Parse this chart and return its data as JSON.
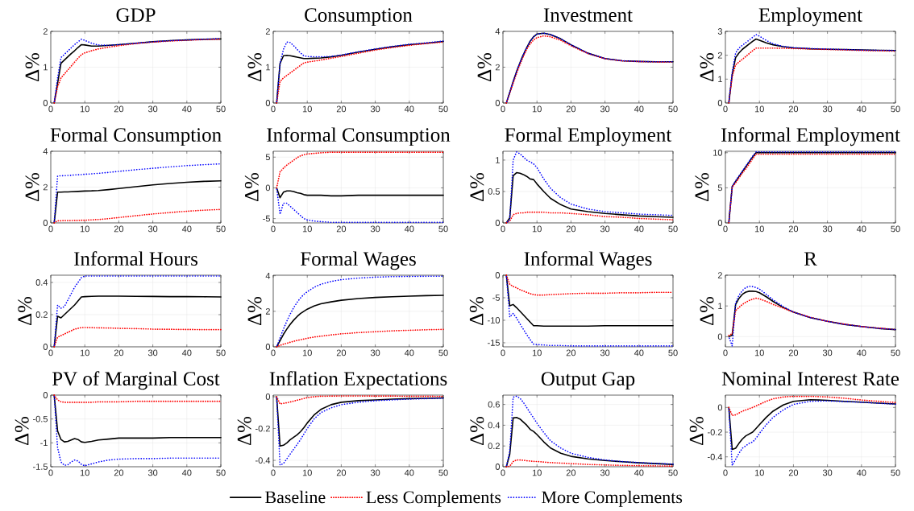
{
  "chart_data": [
    {
      "type": "line",
      "title": "GDP",
      "ylabel": "Δ%",
      "x": [
        1,
        2,
        3,
        4,
        5,
        6,
        7,
        8,
        9,
        10,
        12,
        14,
        17,
        20,
        25,
        30,
        35,
        40,
        45,
        50
      ],
      "xlim": [
        0,
        50
      ],
      "xticks": [
        0,
        10,
        20,
        30,
        40,
        50
      ],
      "ylim": [
        0,
        2
      ],
      "yticks": [
        0,
        1,
        2
      ],
      "grid": true,
      "series": [
        {
          "color": "#000000",
          "line_style": "solid",
          "values": [
            0,
            0.55,
            1.11,
            1.2,
            1.29,
            1.38,
            1.46,
            1.55,
            1.63,
            1.62,
            1.59,
            1.59,
            1.61,
            1.63,
            1.67,
            1.71,
            1.74,
            1.76,
            1.78,
            1.79
          ]
        },
        {
          "color": "#ff0000",
          "line_style": "dotted",
          "values": [
            0,
            0.45,
            0.7,
            0.81,
            0.92,
            1.03,
            1.14,
            1.25,
            1.35,
            1.4,
            1.46,
            1.51,
            1.56,
            1.6,
            1.66,
            1.7,
            1.73,
            1.75,
            1.77,
            1.78
          ]
        },
        {
          "color": "#0000ff",
          "line_style": "dotted",
          "values": [
            0,
            0.7,
            1.27,
            1.36,
            1.45,
            1.54,
            1.63,
            1.71,
            1.78,
            1.75,
            1.67,
            1.62,
            1.61,
            1.63,
            1.67,
            1.71,
            1.74,
            1.76,
            1.78,
            1.8
          ]
        }
      ]
    },
    {
      "type": "line",
      "title": "Consumption",
      "ylabel": "Δ%",
      "x": [
        1,
        2,
        3,
        4,
        5,
        6,
        7,
        8,
        9,
        10,
        12,
        14,
        17,
        20,
        25,
        30,
        35,
        40,
        45,
        50
      ],
      "xlim": [
        0,
        50
      ],
      "xticks": [
        0,
        10,
        20,
        30,
        40,
        50
      ],
      "ylim": [
        0,
        2
      ],
      "yticks": [
        0,
        1,
        2
      ],
      "grid": true,
      "series": [
        {
          "color": "#000000",
          "line_style": "solid",
          "values": [
            0,
            1.1,
            1.32,
            1.33,
            1.32,
            1.3,
            1.28,
            1.26,
            1.24,
            1.24,
            1.25,
            1.26,
            1.29,
            1.33,
            1.42,
            1.5,
            1.57,
            1.63,
            1.67,
            1.72
          ]
        },
        {
          "color": "#ff0000",
          "line_style": "dotted",
          "values": [
            0,
            0.6,
            0.7,
            0.77,
            0.84,
            0.91,
            0.98,
            1.05,
            1.12,
            1.14,
            1.17,
            1.2,
            1.25,
            1.3,
            1.39,
            1.48,
            1.55,
            1.61,
            1.66,
            1.7
          ]
        },
        {
          "color": "#0000ff",
          "line_style": "dotted",
          "values": [
            0,
            1.1,
            1.5,
            1.7,
            1.69,
            1.6,
            1.5,
            1.4,
            1.32,
            1.3,
            1.29,
            1.29,
            1.3,
            1.34,
            1.43,
            1.51,
            1.58,
            1.64,
            1.68,
            1.73
          ]
        }
      ]
    },
    {
      "type": "line",
      "title": "Investment",
      "ylabel": "Δ%",
      "x": [
        1,
        2,
        3,
        4,
        5,
        6,
        7,
        8,
        9,
        10,
        12,
        14,
        17,
        20,
        25,
        30,
        35,
        40,
        45,
        50
      ],
      "xlim": [
        0,
        50
      ],
      "xticks": [
        0,
        10,
        20,
        30,
        40,
        50
      ],
      "ylim": [
        0,
        4
      ],
      "yticks": [
        0,
        2,
        4
      ],
      "grid": true,
      "series": [
        {
          "color": "#000000",
          "line_style": "solid",
          "values": [
            0,
            0.6,
            1.2,
            1.75,
            2.25,
            2.7,
            3.1,
            3.45,
            3.7,
            3.85,
            3.9,
            3.82,
            3.58,
            3.25,
            2.78,
            2.48,
            2.36,
            2.32,
            2.3,
            2.3
          ]
        },
        {
          "color": "#ff0000",
          "line_style": "dotted",
          "values": [
            0,
            0.55,
            1.1,
            1.65,
            2.15,
            2.6,
            3.0,
            3.3,
            3.52,
            3.65,
            3.75,
            3.7,
            3.5,
            3.2,
            2.76,
            2.47,
            2.35,
            2.31,
            2.29,
            2.29
          ]
        },
        {
          "color": "#0000ff",
          "line_style": "dotted",
          "values": [
            0,
            0.6,
            1.2,
            1.75,
            2.25,
            2.7,
            3.1,
            3.45,
            3.7,
            3.85,
            3.9,
            3.83,
            3.59,
            3.25,
            2.78,
            2.48,
            2.36,
            2.32,
            2.3,
            2.3
          ]
        }
      ]
    },
    {
      "type": "line",
      "title": "Employment",
      "ylabel": "Δ%",
      "x": [
        1,
        2,
        3,
        4,
        5,
        6,
        7,
        8,
        9,
        10,
        12,
        14,
        17,
        20,
        25,
        30,
        35,
        40,
        45,
        50
      ],
      "xlim": [
        0,
        50
      ],
      "xticks": [
        0,
        10,
        20,
        30,
        40,
        50
      ],
      "ylim": [
        0,
        3
      ],
      "yticks": [
        0,
        1,
        2,
        3
      ],
      "grid": true,
      "series": [
        {
          "color": "#000000",
          "line_style": "solid",
          "values": [
            0,
            1.2,
            1.9,
            2.1,
            2.25,
            2.36,
            2.47,
            2.58,
            2.68,
            2.63,
            2.52,
            2.44,
            2.36,
            2.31,
            2.27,
            2.25,
            2.24,
            2.22,
            2.21,
            2.2
          ]
        },
        {
          "color": "#ff0000",
          "line_style": "dotted",
          "values": [
            0,
            1.1,
            1.6,
            1.72,
            1.83,
            1.95,
            2.07,
            2.19,
            2.3,
            2.3,
            2.3,
            2.3,
            2.29,
            2.28,
            2.26,
            2.24,
            2.22,
            2.2,
            2.19,
            2.17
          ]
        },
        {
          "color": "#0000ff",
          "line_style": "dotted",
          "values": [
            0,
            1.3,
            2.1,
            2.3,
            2.42,
            2.53,
            2.64,
            2.75,
            2.87,
            2.8,
            2.62,
            2.48,
            2.37,
            2.32,
            2.28,
            2.26,
            2.24,
            2.22,
            2.21,
            2.2
          ]
        }
      ]
    },
    {
      "type": "line",
      "title": "Formal Consumption",
      "ylabel": "Δ%",
      "x": [
        1,
        2,
        3,
        4,
        5,
        6,
        7,
        8,
        9,
        10,
        12,
        14,
        17,
        20,
        25,
        30,
        35,
        40,
        45,
        50
      ],
      "xlim": [
        0,
        50
      ],
      "xticks": [
        0,
        10,
        20,
        30,
        40,
        50
      ],
      "ylim": [
        0,
        4
      ],
      "yticks": [
        0,
        2,
        4
      ],
      "grid": true,
      "series": [
        {
          "color": "#000000",
          "line_style": "solid",
          "values": [
            0,
            1.72,
            1.72,
            1.73,
            1.73,
            1.74,
            1.75,
            1.76,
            1.77,
            1.78,
            1.79,
            1.81,
            1.86,
            1.92,
            2.02,
            2.12,
            2.2,
            2.27,
            2.32,
            2.35
          ]
        },
        {
          "color": "#ff0000",
          "line_style": "dotted",
          "values": [
            0,
            0.12,
            0.12,
            0.13,
            0.13,
            0.13,
            0.14,
            0.14,
            0.15,
            0.15,
            0.17,
            0.19,
            0.24,
            0.3,
            0.4,
            0.5,
            0.58,
            0.65,
            0.71,
            0.75
          ]
        },
        {
          "color": "#0000ff",
          "line_style": "dotted",
          "values": [
            0,
            2.62,
            2.63,
            2.64,
            2.65,
            2.66,
            2.68,
            2.69,
            2.7,
            2.72,
            2.74,
            2.77,
            2.82,
            2.88,
            2.97,
            3.05,
            3.13,
            3.2,
            3.25,
            3.3
          ]
        }
      ]
    },
    {
      "type": "line",
      "title": "Informal Consumption",
      "ylabel": "Δ%",
      "x": [
        1,
        2,
        3,
        4,
        5,
        6,
        7,
        8,
        9,
        10,
        12,
        14,
        17,
        20,
        25,
        30,
        35,
        40,
        45,
        50
      ],
      "xlim": [
        0,
        50
      ],
      "xticks": [
        0,
        10,
        20,
        30,
        40,
        50
      ],
      "ylim": [
        -5.7,
        5.95
      ],
      "yticks": [
        -5,
        0,
        5
      ],
      "grid": true,
      "series": [
        {
          "color": "#000000",
          "line_style": "solid",
          "values": [
            0,
            -1.6,
            -0.7,
            -0.5,
            -0.5,
            -0.6,
            -0.8,
            -0.9,
            -1.1,
            -1.2,
            -1.2,
            -1.2,
            -1.3,
            -1.3,
            -1.2,
            -1.2,
            -1.2,
            -1.2,
            -1.2,
            -1.2
          ]
        },
        {
          "color": "#ff0000",
          "line_style": "dotted",
          "values": [
            0,
            2.6,
            3.2,
            3.7,
            4.1,
            4.5,
            4.9,
            5.2,
            5.4,
            5.5,
            5.6,
            5.7,
            5.8,
            5.8,
            5.8,
            5.8,
            5.8,
            5.8,
            5.8,
            5.8
          ]
        },
        {
          "color": "#0000ff",
          "line_style": "dotted",
          "values": [
            0,
            -4.3,
            -2.5,
            -2.5,
            -3.0,
            -3.5,
            -4.0,
            -4.5,
            -5.0,
            -5.2,
            -5.4,
            -5.5,
            -5.6,
            -5.6,
            -5.6,
            -5.6,
            -5.6,
            -5.6,
            -5.6,
            -5.6
          ]
        }
      ]
    },
    {
      "type": "line",
      "title": "Formal Employment",
      "ylabel": "Δ%",
      "x": [
        1,
        2,
        3,
        4,
        5,
        6,
        7,
        8,
        9,
        10,
        12,
        14,
        17,
        20,
        25,
        30,
        35,
        40,
        45,
        50
      ],
      "xlim": [
        0,
        50
      ],
      "xticks": [
        0,
        10,
        20,
        30,
        40,
        50
      ],
      "ylim": [
        0,
        1.14
      ],
      "yticks": [
        0,
        0.5,
        1
      ],
      "grid": true,
      "series": [
        {
          "color": "#000000",
          "line_style": "solid",
          "values": [
            0,
            0.08,
            0.75,
            0.8,
            0.79,
            0.77,
            0.74,
            0.7,
            0.69,
            0.62,
            0.5,
            0.39,
            0.29,
            0.22,
            0.18,
            0.15,
            0.13,
            0.11,
            0.1,
            0.09
          ]
        },
        {
          "color": "#ff0000",
          "line_style": "dotted",
          "values": [
            0,
            0.03,
            0.13,
            0.15,
            0.16,
            0.16,
            0.17,
            0.17,
            0.17,
            0.17,
            0.17,
            0.16,
            0.16,
            0.15,
            0.13,
            0.1,
            0.09,
            0.07,
            0.06,
            0.05
          ]
        },
        {
          "color": "#0000ff",
          "line_style": "dotted",
          "values": [
            0,
            0.05,
            1.0,
            1.13,
            1.1,
            1.05,
            1.0,
            0.97,
            0.94,
            0.88,
            0.7,
            0.55,
            0.4,
            0.3,
            0.22,
            0.18,
            0.16,
            0.14,
            0.13,
            0.12
          ]
        }
      ]
    },
    {
      "type": "line",
      "title": "Informal Employment",
      "ylabel": "Δ%",
      "x": [
        1,
        2,
        3,
        4,
        5,
        6,
        7,
        8,
        9,
        10,
        12,
        14,
        17,
        20,
        25,
        30,
        35,
        40,
        45,
        50
      ],
      "xlim": [
        0,
        50
      ],
      "xticks": [
        0,
        10,
        20,
        30,
        40,
        50
      ],
      "ylim": [
        0,
        10.2
      ],
      "yticks": [
        0,
        5,
        10
      ],
      "grid": true,
      "series": [
        {
          "color": "#000000",
          "line_style": "solid",
          "values": [
            0,
            5.2,
            5.9,
            6.6,
            7.3,
            8.0,
            8.7,
            9.4,
            10.0,
            10.0,
            10.0,
            10.0,
            10.0,
            10.0,
            10.0,
            10.0,
            10.0,
            10.0,
            10.0,
            10.0
          ]
        },
        {
          "color": "#ff0000",
          "line_style": "dotted",
          "values": [
            0,
            5.1,
            5.7,
            6.4,
            7.1,
            7.7,
            8.4,
            9.1,
            9.8,
            9.8,
            9.8,
            9.8,
            9.8,
            9.8,
            9.8,
            9.8,
            9.8,
            9.8,
            9.8,
            9.8
          ]
        },
        {
          "color": "#0000ff",
          "line_style": "dotted",
          "values": [
            0,
            5.2,
            6.0,
            6.7,
            7.4,
            8.1,
            8.8,
            9.5,
            10.1,
            10.1,
            10.1,
            10.1,
            10.1,
            10.1,
            10.1,
            10.1,
            10.1,
            10.1,
            10.1,
            10.1
          ]
        }
      ]
    },
    {
      "type": "line",
      "title": "Informal Hours",
      "ylabel": "Δ%",
      "x": [
        1,
        2,
        3,
        4,
        5,
        6,
        7,
        8,
        9,
        10,
        12,
        14,
        17,
        20,
        25,
        30,
        35,
        40,
        45,
        50
      ],
      "xlim": [
        0,
        50
      ],
      "xticks": [
        0,
        10,
        20,
        30,
        40,
        50
      ],
      "ylim": [
        0,
        0.445
      ],
      "yticks": [
        0,
        0.2,
        0.4
      ],
      "grid": true,
      "series": [
        {
          "color": "#000000",
          "line_style": "solid",
          "values": [
            0,
            0.19,
            0.18,
            0.2,
            0.22,
            0.24,
            0.26,
            0.285,
            0.31,
            0.312,
            0.314,
            0.315,
            0.315,
            0.315,
            0.314,
            0.313,
            0.312,
            0.312,
            0.311,
            0.31
          ]
        },
        {
          "color": "#ff0000",
          "line_style": "dotted",
          "values": [
            0,
            0.06,
            0.07,
            0.08,
            0.09,
            0.1,
            0.11,
            0.115,
            0.12,
            0.12,
            0.119,
            0.118,
            0.117,
            0.115,
            0.113,
            0.11,
            0.109,
            0.108,
            0.107,
            0.107
          ]
        },
        {
          "color": "#0000ff",
          "line_style": "dotted",
          "values": [
            0,
            0.26,
            0.24,
            0.25,
            0.29,
            0.33,
            0.37,
            0.4,
            0.43,
            0.44,
            0.44,
            0.44,
            0.44,
            0.44,
            0.44,
            0.44,
            0.44,
            0.44,
            0.44,
            0.44
          ]
        }
      ]
    },
    {
      "type": "line",
      "title": "Formal Wages",
      "ylabel": "Δ%",
      "x": [
        1,
        2,
        3,
        4,
        5,
        6,
        7,
        8,
        9,
        10,
        12,
        14,
        17,
        20,
        25,
        30,
        35,
        40,
        45,
        50
      ],
      "xlim": [
        0,
        50
      ],
      "xticks": [
        0,
        10,
        20,
        30,
        40,
        50
      ],
      "ylim": [
        0,
        4.03
      ],
      "yticks": [
        0,
        2,
        4
      ],
      "grid": true,
      "series": [
        {
          "color": "#000000",
          "line_style": "solid",
          "values": [
            0,
            0.35,
            0.7,
            1.0,
            1.27,
            1.5,
            1.7,
            1.87,
            2.0,
            2.12,
            2.3,
            2.42,
            2.53,
            2.62,
            2.72,
            2.78,
            2.82,
            2.85,
            2.88,
            2.9
          ]
        },
        {
          "color": "#ff0000",
          "line_style": "dotted",
          "values": [
            0,
            0.08,
            0.15,
            0.2,
            0.26,
            0.31,
            0.36,
            0.4,
            0.44,
            0.48,
            0.55,
            0.6,
            0.67,
            0.73,
            0.8,
            0.85,
            0.9,
            0.93,
            0.96,
            0.98
          ]
        },
        {
          "color": "#0000ff",
          "line_style": "dotted",
          "values": [
            0,
            0.5,
            1.0,
            1.45,
            1.85,
            2.2,
            2.5,
            2.75,
            2.95,
            3.1,
            3.35,
            3.52,
            3.68,
            3.78,
            3.87,
            3.92,
            3.95,
            3.96,
            3.97,
            3.97
          ]
        }
      ]
    },
    {
      "type": "line",
      "title": "Informal Wages",
      "ylabel": "Δ%",
      "x": [
        1,
        2,
        3,
        4,
        5,
        6,
        7,
        8,
        9,
        10,
        12,
        14,
        17,
        20,
        25,
        30,
        35,
        40,
        45,
        50
      ],
      "xlim": [
        0,
        50
      ],
      "xticks": [
        0,
        10,
        20,
        30,
        40,
        50
      ],
      "ylim": [
        -15.9,
        0
      ],
      "yticks": [
        -15,
        -10,
        -5,
        0
      ],
      "grid": true,
      "series": [
        {
          "color": "#000000",
          "line_style": "solid",
          "values": [
            0,
            -6.8,
            -6.5,
            -7.2,
            -8.0,
            -8.8,
            -9.6,
            -10.4,
            -11.2,
            -11.2,
            -11.3,
            -11.3,
            -11.3,
            -11.3,
            -11.3,
            -11.2,
            -11.2,
            -11.2,
            -11.2,
            -11.2
          ]
        },
        {
          "color": "#ff0000",
          "line_style": "dotted",
          "values": [
            0,
            -2.0,
            -2.5,
            -2.8,
            -3.2,
            -3.5,
            -3.8,
            -4.1,
            -4.3,
            -4.4,
            -4.4,
            -4.3,
            -4.2,
            -4.1,
            -4.0,
            -4.0,
            -3.9,
            -3.9,
            -3.8,
            -3.8
          ]
        },
        {
          "color": "#0000ff",
          "line_style": "dotted",
          "values": [
            0,
            -9.3,
            -8.5,
            -9.5,
            -10.8,
            -12.0,
            -13.2,
            -14.3,
            -15.3,
            -15.4,
            -15.5,
            -15.6,
            -15.6,
            -15.7,
            -15.7,
            -15.7,
            -15.7,
            -15.7,
            -15.7,
            -15.7
          ]
        }
      ]
    },
    {
      "type": "line",
      "title": "R",
      "ylabel": "Δ%",
      "x": [
        1,
        2,
        3,
        4,
        5,
        6,
        7,
        8,
        9,
        10,
        12,
        14,
        17,
        20,
        25,
        30,
        35,
        40,
        45,
        50
      ],
      "xlim": [
        0,
        50
      ],
      "xticks": [
        0,
        10,
        20,
        30,
        40,
        50
      ],
      "ylim": [
        -0.33,
        2
      ],
      "yticks": [
        0,
        1,
        2
      ],
      "grid": true,
      "series": [
        {
          "color": "#000000",
          "line_style": "solid",
          "values": [
            0,
            0.05,
            1.05,
            1.25,
            1.38,
            1.45,
            1.48,
            1.48,
            1.47,
            1.43,
            1.3,
            1.15,
            0.95,
            0.8,
            0.62,
            0.5,
            0.4,
            0.33,
            0.27,
            0.23
          ]
        },
        {
          "color": "#ff0000",
          "line_style": "dotted",
          "values": [
            0.04,
            0.1,
            0.85,
            0.95,
            1.05,
            1.12,
            1.18,
            1.22,
            1.25,
            1.23,
            1.15,
            1.05,
            0.93,
            0.8,
            0.63,
            0.5,
            0.41,
            0.33,
            0.28,
            0.23
          ]
        },
        {
          "color": "#0000ff",
          "line_style": "dotted",
          "values": [
            0,
            -0.3,
            1.1,
            1.35,
            1.5,
            1.6,
            1.64,
            1.63,
            1.6,
            1.55,
            1.38,
            1.2,
            0.98,
            0.8,
            0.62,
            0.5,
            0.4,
            0.33,
            0.27,
            0.23
          ]
        }
      ]
    },
    {
      "type": "line",
      "title": "PV of Marginal Cost",
      "ylabel": "Δ%",
      "x": [
        1,
        2,
        3,
        4,
        5,
        6,
        7,
        8,
        9,
        10,
        12,
        14,
        17,
        20,
        25,
        30,
        35,
        40,
        45,
        50
      ],
      "xlim": [
        0,
        50
      ],
      "xticks": [
        0,
        10,
        20,
        30,
        40,
        50
      ],
      "ylim": [
        -1.5,
        0
      ],
      "yticks": [
        -1.5,
        -1,
        -0.5,
        0
      ],
      "grid": true,
      "series": [
        {
          "color": "#000000",
          "line_style": "solid",
          "values": [
            0,
            -0.75,
            -0.93,
            -0.98,
            -0.97,
            -0.94,
            -0.91,
            -0.93,
            -0.98,
            -0.99,
            -0.97,
            -0.94,
            -0.92,
            -0.9,
            -0.9,
            -0.9,
            -0.89,
            -0.89,
            -0.89,
            -0.89
          ]
        },
        {
          "color": "#ff0000",
          "line_style": "dotted",
          "values": [
            0,
            -0.1,
            -0.14,
            -0.15,
            -0.15,
            -0.15,
            -0.15,
            -0.15,
            -0.15,
            -0.15,
            -0.15,
            -0.14,
            -0.14,
            -0.14,
            -0.13,
            -0.13,
            -0.13,
            -0.13,
            -0.13,
            -0.13
          ]
        },
        {
          "color": "#0000ff",
          "line_style": "dotted",
          "values": [
            0,
            -1.1,
            -1.4,
            -1.47,
            -1.46,
            -1.4,
            -1.36,
            -1.38,
            -1.45,
            -1.48,
            -1.44,
            -1.4,
            -1.36,
            -1.34,
            -1.33,
            -1.33,
            -1.32,
            -1.32,
            -1.32,
            -1.32
          ]
        }
      ]
    },
    {
      "type": "line",
      "title": "Inflation Expectations",
      "ylabel": "Δ%",
      "x": [
        1,
        2,
        3,
        4,
        5,
        6,
        7,
        8,
        9,
        10,
        12,
        14,
        17,
        20,
        25,
        30,
        35,
        40,
        45,
        50
      ],
      "xlim": [
        0,
        50
      ],
      "xticks": [
        0,
        10,
        20,
        30,
        40,
        50
      ],
      "ylim": [
        -0.44,
        0.01
      ],
      "yticks": [
        -0.4,
        -0.2,
        0
      ],
      "grid": true,
      "legend": "bottom",
      "series": [
        {
          "name": "Baseline",
          "color": "#000000",
          "line_style": "solid",
          "values": [
            0,
            -0.31,
            -0.305,
            -0.29,
            -0.27,
            -0.255,
            -0.24,
            -0.22,
            -0.195,
            -0.165,
            -0.115,
            -0.08,
            -0.05,
            -0.035,
            -0.025,
            -0.02,
            -0.015,
            -0.012,
            -0.01,
            -0.008
          ]
        },
        {
          "name": "Less Complements",
          "color": "#ff0000",
          "line_style": "dotted",
          "values": [
            0,
            -0.045,
            -0.042,
            -0.038,
            -0.033,
            -0.028,
            -0.022,
            -0.017,
            -0.011,
            -0.006,
            0,
            0.003,
            0.004,
            0.005,
            0.005,
            0.004,
            0.004,
            0.003,
            0.003,
            0.002
          ]
        },
        {
          "name": "More Complements",
          "color": "#0000ff",
          "line_style": "dotted",
          "values": [
            0,
            -0.43,
            -0.42,
            -0.39,
            -0.36,
            -0.33,
            -0.3,
            -0.27,
            -0.235,
            -0.2,
            -0.14,
            -0.1,
            -0.07,
            -0.05,
            -0.035,
            -0.025,
            -0.02,
            -0.015,
            -0.012,
            -0.01
          ]
        }
      ]
    },
    {
      "type": "line",
      "title": "Output Gap",
      "ylabel": "Δ%",
      "x": [
        1,
        2,
        3,
        4,
        5,
        6,
        7,
        8,
        9,
        10,
        12,
        14,
        17,
        20,
        25,
        30,
        35,
        40,
        45,
        50
      ],
      "xlim": [
        0,
        50
      ],
      "xticks": [
        0,
        10,
        20,
        30,
        40,
        50
      ],
      "ylim": [
        0,
        0.69
      ],
      "yticks": [
        0,
        0.2,
        0.4,
        0.6
      ],
      "grid": true,
      "series": [
        {
          "color": "#000000",
          "line_style": "solid",
          "values": [
            0,
            0.12,
            0.47,
            0.475,
            0.46,
            0.43,
            0.4,
            0.36,
            0.34,
            0.31,
            0.24,
            0.18,
            0.13,
            0.1,
            0.075,
            0.06,
            0.048,
            0.038,
            0.03,
            0.022
          ]
        },
        {
          "color": "#ff0000",
          "line_style": "dotted",
          "values": [
            0,
            0.005,
            0.05,
            0.065,
            0.065,
            0.062,
            0.058,
            0.055,
            0.052,
            0.05,
            0.045,
            0.04,
            0.035,
            0.03,
            0.022,
            0.017,
            0.013,
            0.01,
            0.008,
            0.006
          ]
        },
        {
          "color": "#0000ff",
          "line_style": "dotted",
          "values": [
            0,
            0.15,
            0.67,
            0.68,
            0.66,
            0.62,
            0.57,
            0.52,
            0.47,
            0.42,
            0.33,
            0.25,
            0.18,
            0.13,
            0.09,
            0.065,
            0.05,
            0.04,
            0.032,
            0.025
          ]
        }
      ]
    },
    {
      "type": "line",
      "title": "Nominal Interest Rate",
      "ylabel": "Δ%",
      "x": [
        1,
        2,
        3,
        4,
        5,
        6,
        7,
        8,
        9,
        10,
        12,
        14,
        17,
        20,
        25,
        30,
        35,
        40,
        45,
        50
      ],
      "xlim": [
        0,
        50
      ],
      "xticks": [
        0,
        10,
        20,
        30,
        40,
        50
      ],
      "ylim": [
        -0.48,
        0.1
      ],
      "yticks": [
        -0.4,
        -0.2,
        0
      ],
      "grid": true,
      "series": [
        {
          "color": "#000000",
          "line_style": "solid",
          "values": [
            0,
            -0.34,
            -0.33,
            -0.29,
            -0.255,
            -0.23,
            -0.215,
            -0.2,
            -0.17,
            -0.14,
            -0.08,
            -0.03,
            0.02,
            0.05,
            0.063,
            0.058,
            0.05,
            0.043,
            0.035,
            0.028
          ]
        },
        {
          "color": "#ff0000",
          "line_style": "dotted",
          "values": [
            0,
            -0.065,
            -0.06,
            -0.045,
            -0.03,
            -0.02,
            -0.01,
            0,
            0.012,
            0.025,
            0.05,
            0.07,
            0.085,
            0.09,
            0.09,
            0.085,
            0.075,
            0.06,
            0.05,
            0.04
          ]
        },
        {
          "color": "#0000ff",
          "line_style": "dotted",
          "values": [
            0,
            -0.47,
            -0.42,
            -0.37,
            -0.33,
            -0.31,
            -0.29,
            -0.28,
            -0.25,
            -0.21,
            -0.14,
            -0.08,
            -0.02,
            0.025,
            0.05,
            0.053,
            0.048,
            0.042,
            0.034,
            0.027
          ]
        }
      ]
    }
  ]
}
